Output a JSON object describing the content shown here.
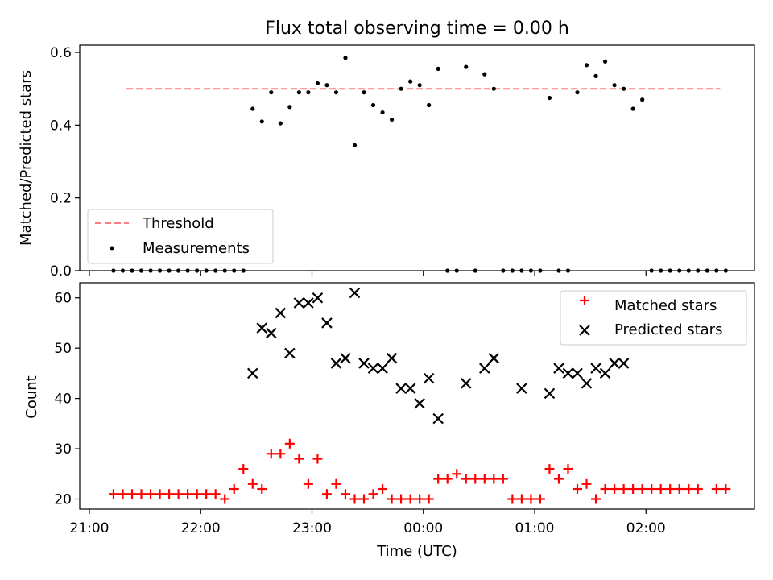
{
  "chart_data": [
    {
      "type": "scatter",
      "title": "Flux total observing time = 0.00 h",
      "ylabel": "Matched/Predicted stars",
      "xlabel": "",
      "ylim": [
        0,
        0.62
      ],
      "yticks": [
        0.0,
        0.2,
        0.4,
        0.6
      ],
      "ytick_labels": [
        "0.0",
        "0.2",
        "0.4",
        "0.6"
      ],
      "legend_position": "lower-left",
      "series": [
        {
          "name": "Threshold",
          "kind": "dashed-line",
          "color": "#ff7f7f",
          "x": [
            "21:20",
            "02:40"
          ],
          "y": [
            0.5,
            0.5
          ]
        },
        {
          "name": "Measurements",
          "kind": "dots",
          "color": "#000000",
          "x": [
            "21:13",
            "21:18",
            "21:23",
            "21:28",
            "21:33",
            "21:38",
            "21:43",
            "21:48",
            "21:53",
            "21:58",
            "22:03",
            "22:08",
            "22:13",
            "22:18",
            "22:23",
            "22:28",
            "22:33",
            "22:38",
            "22:43",
            "22:48",
            "22:53",
            "22:58",
            "23:03",
            "23:08",
            "23:13",
            "23:18",
            "23:23",
            "23:28",
            "23:33",
            "23:38",
            "23:43",
            "23:48",
            "23:53",
            "23:58",
            "00:03",
            "00:08",
            "00:13",
            "00:18",
            "00:23",
            "00:28",
            "00:33",
            "00:38",
            "00:43",
            "00:48",
            "00:53",
            "00:58",
            "01:03",
            "01:08",
            "01:13",
            "01:18",
            "01:23",
            "01:28",
            "01:33",
            "01:38",
            "01:43",
            "01:48",
            "01:53",
            "01:58",
            "02:03",
            "02:08",
            "02:13",
            "02:18",
            "02:23",
            "02:28",
            "02:33",
            "02:38",
            "02:43"
          ],
          "y": [
            0,
            0,
            0,
            0,
            0,
            0,
            0,
            0,
            0,
            0,
            0,
            0,
            0,
            0,
            0,
            0.445,
            0.41,
            0.49,
            0.405,
            0.45,
            0.49,
            0.49,
            0.515,
            0.51,
            0.49,
            0.585,
            0.345,
            0.49,
            0.455,
            0.435,
            0.415,
            0.5,
            0.52,
            0.51,
            0.455,
            0.555,
            0,
            0,
            0.56,
            0,
            0.54,
            0.5,
            0,
            0,
            0,
            0,
            0,
            0.475,
            0,
            0,
            0.49,
            0.565,
            0.535,
            0.575,
            0.51,
            0.5,
            0.445,
            0.47,
            0,
            0,
            0,
            0,
            0,
            0,
            0,
            0,
            0
          ]
        }
      ]
    },
    {
      "type": "scatter",
      "title": "",
      "ylabel": "Count",
      "xlabel": "Time (UTC)",
      "ylim": [
        18,
        63
      ],
      "yticks": [
        20,
        30,
        40,
        50,
        60
      ],
      "ytick_labels": [
        "20",
        "30",
        "40",
        "50",
        "60"
      ],
      "xticks": [
        "21:00",
        "22:00",
        "23:00",
        "00:00",
        "01:00",
        "02:00"
      ],
      "legend_position": "upper-right",
      "series": [
        {
          "name": "Matched stars",
          "marker": "plus",
          "color": "#ff0000",
          "x": [
            "21:13",
            "21:18",
            "21:23",
            "21:28",
            "21:33",
            "21:38",
            "21:43",
            "21:48",
            "21:53",
            "21:58",
            "22:03",
            "22:08",
            "22:13",
            "22:18",
            "22:23",
            "22:28",
            "22:33",
            "22:38",
            "22:43",
            "22:48",
            "22:53",
            "22:58",
            "23:03",
            "23:08",
            "23:13",
            "23:18",
            "23:23",
            "23:28",
            "23:33",
            "23:38",
            "23:43",
            "23:48",
            "23:53",
            "23:58",
            "00:03",
            "00:08",
            "00:13",
            "00:18",
            "00:23",
            "00:28",
            "00:33",
            "00:38",
            "00:43",
            "00:48",
            "00:53",
            "00:58",
            "01:03",
            "01:08",
            "01:13",
            "01:18",
            "01:23",
            "01:28",
            "01:33",
            "01:38",
            "01:43",
            "01:48",
            "01:53",
            "01:58",
            "02:03",
            "02:08",
            "02:13",
            "02:18",
            "02:23",
            "02:28",
            "02:38",
            "02:43"
          ],
          "y": [
            21,
            21,
            21,
            21,
            21,
            21,
            21,
            21,
            21,
            21,
            21,
            21,
            20,
            22,
            26,
            23,
            22,
            29,
            29,
            31,
            28,
            23,
            28,
            21,
            23,
            21,
            20,
            20,
            21,
            22,
            20,
            20,
            20,
            20,
            20,
            24,
            24,
            25,
            24,
            24,
            24,
            24,
            24,
            20,
            20,
            20,
            20,
            26,
            24,
            26,
            22,
            23,
            20,
            22,
            22,
            22,
            22,
            22,
            22,
            22,
            22,
            22,
            22,
            22,
            22,
            22
          ]
        },
        {
          "name": "Predicted stars",
          "marker": "x",
          "color": "#000000",
          "x": [
            "22:28",
            "22:33",
            "22:38",
            "22:43",
            "22:48",
            "22:53",
            "22:58",
            "23:03",
            "23:08",
            "23:13",
            "23:18",
            "23:23",
            "23:28",
            "23:33",
            "23:38",
            "23:43",
            "23:48",
            "23:53",
            "23:58",
            "00:03",
            "00:08",
            "00:23",
            "00:33",
            "00:38",
            "00:53",
            "01:08",
            "01:13",
            "01:18",
            "01:23",
            "01:28",
            "01:33",
            "01:38",
            "01:43",
            "01:48"
          ],
          "y": [
            45,
            54,
            53,
            57,
            49,
            59,
            59,
            60,
            55,
            47,
            48,
            61,
            47,
            46,
            46,
            48,
            42,
            42,
            39,
            44,
            36,
            43,
            46,
            48,
            42,
            41,
            46,
            45,
            45,
            43,
            46,
            45,
            47,
            47
          ]
        }
      ]
    }
  ]
}
